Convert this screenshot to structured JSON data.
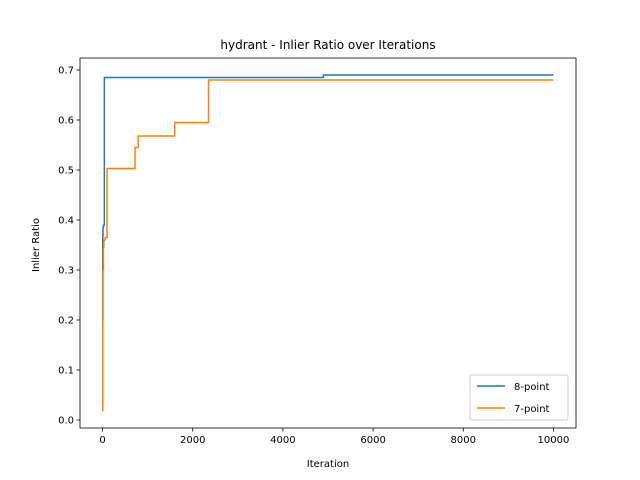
{
  "chart_data": {
    "type": "line",
    "title": "hydrant - Inlier Ratio over Iterations",
    "xlabel": "Iteration",
    "ylabel": "Inlier Ratio",
    "xlim": [
      -500,
      10500
    ],
    "ylim": [
      -0.016,
      0.724
    ],
    "xticks": [
      0,
      2000,
      4000,
      6000,
      8000,
      10000
    ],
    "yticks": [
      0.0,
      0.1,
      0.2,
      0.3,
      0.4,
      0.5,
      0.6,
      0.7
    ],
    "grid": false,
    "legend_position": "lower-right",
    "series": [
      {
        "name": "8-point",
        "color": "#1f77b4",
        "step": true,
        "x": [
          1,
          5,
          10,
          20,
          40,
          4900,
          10000
        ],
        "y": [
          0.025,
          0.37,
          0.385,
          0.39,
          0.685,
          0.69,
          0.69
        ]
      },
      {
        "name": "7-point",
        "color": "#ff7f0e",
        "step": true,
        "x": [
          1,
          5,
          10,
          20,
          30,
          60,
          100,
          720,
          790,
          1600,
          2350,
          10000
        ],
        "y": [
          0.018,
          0.2,
          0.3,
          0.345,
          0.36,
          0.365,
          0.503,
          0.545,
          0.568,
          0.595,
          0.68,
          0.68
        ]
      }
    ]
  }
}
